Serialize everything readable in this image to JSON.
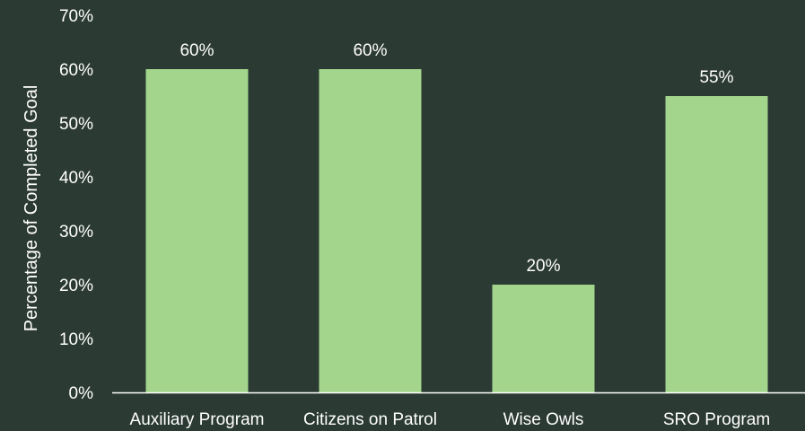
{
  "chart_data": {
    "type": "bar",
    "categories": [
      "Auxiliary Program",
      "Citizens on Patrol",
      "Wise Owls",
      "SRO Program"
    ],
    "values": [
      60,
      60,
      20,
      55
    ],
    "data_labels": [
      "60%",
      "60%",
      "20%",
      "55%"
    ],
    "title": "",
    "xlabel": "",
    "ylabel": "Percentage of Completed Goal",
    "ylim": [
      0,
      70
    ],
    "y_ticks": [
      0,
      10,
      20,
      30,
      40,
      50,
      60,
      70
    ],
    "y_tick_labels": [
      "0%",
      "10%",
      "20%",
      "30%",
      "40%",
      "50%",
      "60%",
      "70%"
    ],
    "grid": false,
    "legend": "none",
    "colors": {
      "background": "#2b3a33",
      "bar": "#a3d68c",
      "axis": "#ffffff",
      "text": "#ffffff"
    }
  }
}
